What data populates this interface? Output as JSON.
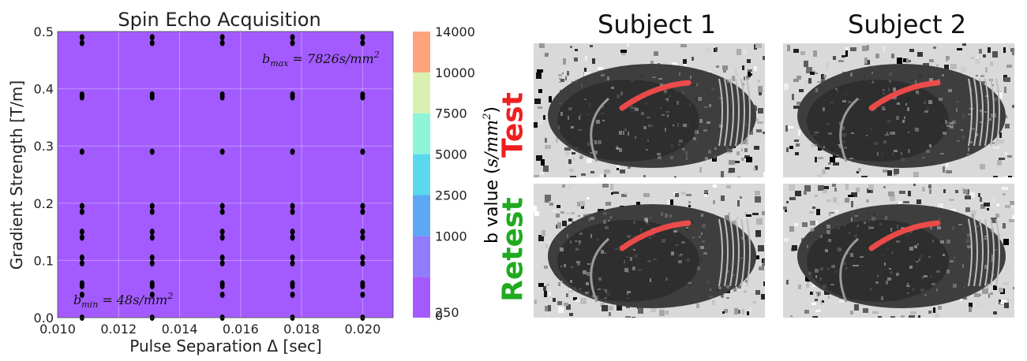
{
  "chart_data": {
    "type": "contour",
    "title": "Spin Echo Acquisition",
    "xlabel": "Pulse Separation Δ  [sec]",
    "ylabel": "Gradient Strength [T/m]",
    "xlim": [
      0.01,
      0.021
    ],
    "ylim": [
      0.0,
      0.5
    ],
    "x_ticks": [
      "0.010",
      "0.012",
      "0.014",
      "0.016",
      "0.018",
      "0.020"
    ],
    "y_ticks": [
      "0.0",
      "0.1",
      "0.2",
      "0.3",
      "0.4",
      "0.5"
    ],
    "grid": true,
    "contour_levels": [
      0,
      250,
      1000,
      2500,
      5000,
      7500,
      10000,
      14000
    ],
    "contour_colors": [
      "#a35bff",
      "#8f7cff",
      "#5ca8f5",
      "#5ad8ee",
      "#8ff5d8",
      "#d8f0b0",
      "#ffa37c"
    ],
    "colorbar_label": "b value (s/mm²)",
    "colorbar_ticks": [
      "0",
      "250",
      "1000",
      "2500",
      "5000",
      "7500",
      "10000",
      "14000"
    ],
    "annotations": [
      {
        "text": "b_max = 7826 s/mm²"
      },
      {
        "text": "b_min = 48 s/mm²"
      }
    ],
    "scatter": {
      "x": [
        0.0108,
        0.0131,
        0.0154,
        0.0177,
        0.02
      ],
      "y": [
        0.0,
        0.04,
        0.055,
        0.06,
        0.095,
        0.105,
        0.14,
        0.15,
        0.185,
        0.195,
        0.29,
        0.385,
        0.39,
        0.48,
        0.49
      ],
      "color": "#000000"
    }
  },
  "figure": {
    "columns": [
      "Subject 1",
      "Subject 2"
    ],
    "rows": [
      {
        "label": "Test",
        "color": "#ee1f1f"
      },
      {
        "label": "Retest",
        "color": "#1faa1f"
      }
    ]
  }
}
